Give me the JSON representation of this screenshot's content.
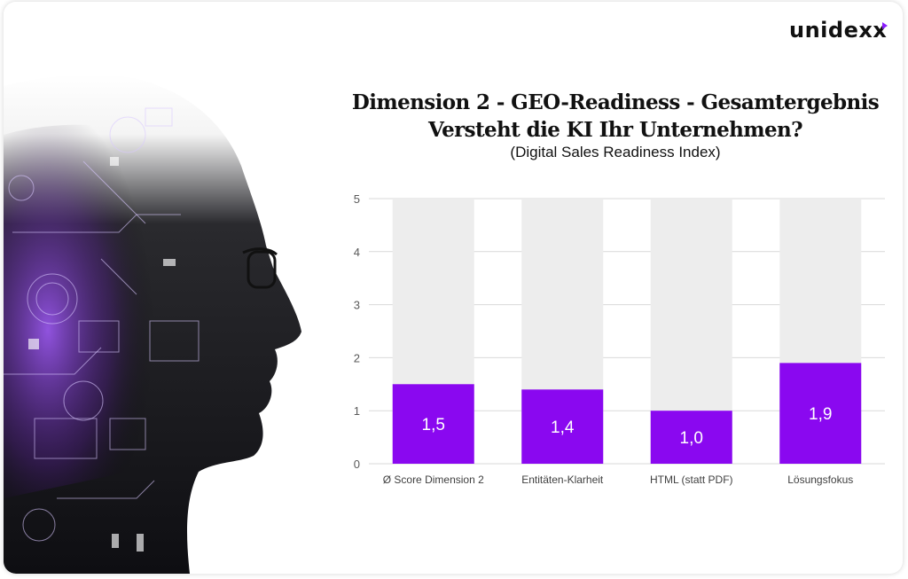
{
  "brand": {
    "logo_text": "unidexx",
    "accent": "#8a1cff"
  },
  "hero_image": {
    "icon": "human-profile-tech-overlay-image"
  },
  "chart_data": {
    "type": "bar",
    "title_line1": "Dimension 2 - GEO-Readiness - Gesamtergebnis",
    "title_line2": "Versteht die KI Ihr Unternehmen?",
    "subtitle": "(Digital Sales Readiness Index)",
    "categories": [
      "Ø Score Dimension 2",
      "Entitäten-Klarheit",
      "HTML (statt PDF)",
      "Lösungsfokus"
    ],
    "values": [
      1.5,
      1.4,
      1.0,
      1.9
    ],
    "data_labels": [
      "1,5",
      "1,4",
      "1,0",
      "1,9"
    ],
    "background_max": 5,
    "ylim": [
      0,
      5
    ],
    "yticks": [
      "0",
      "1",
      "2",
      "3",
      "4",
      "5"
    ],
    "grid": true,
    "colors": {
      "bar": "#8a08f0",
      "background_bar": "#ededed",
      "grid": "#d9d9d9"
    }
  }
}
